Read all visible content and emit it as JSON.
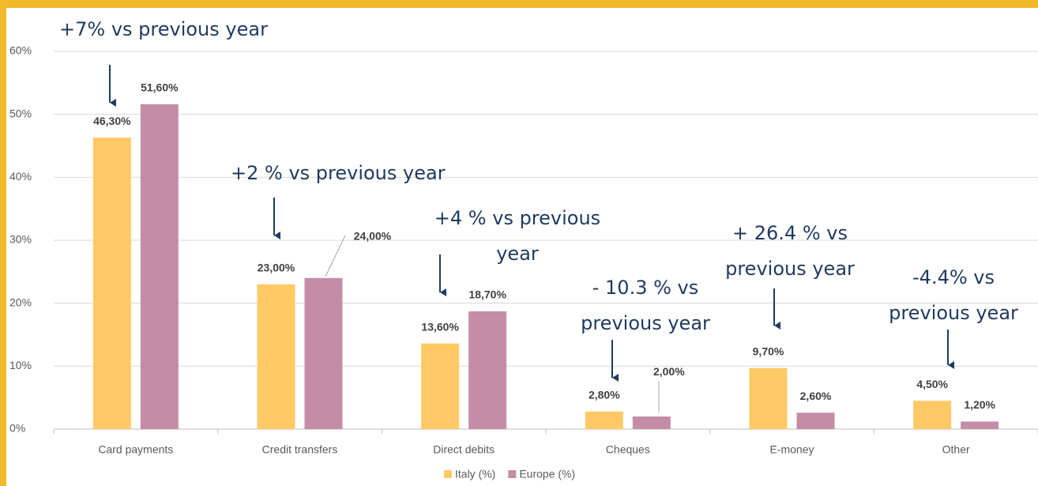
{
  "chart_data": {
    "type": "bar",
    "categories": [
      "Card payments",
      "Credit transfers",
      "Direct debits",
      "Cheques",
      "E-money",
      "Other"
    ],
    "series": [
      {
        "name": "Italy (%)",
        "color": "#ffc966",
        "values": [
          46.3,
          23.0,
          13.6,
          2.8,
          9.7,
          4.5
        ],
        "value_labels": [
          "46,30%",
          "23,00%",
          "13,60%",
          "2,80%",
          "9,70%",
          "4,50%"
        ]
      },
      {
        "name": "Europe (%)",
        "color": "#c48ca7",
        "values": [
          51.6,
          24.0,
          18.7,
          2.0,
          2.6,
          1.2
        ],
        "value_labels": [
          "51,60%",
          "24,00%",
          "18,70%",
          "2,00%",
          "2,60%",
          "1,20%"
        ]
      }
    ],
    "ylim": [
      0,
      60
    ],
    "yticks": [
      {
        "value": 0,
        "label": "0%"
      },
      {
        "value": 10,
        "label": "10%"
      },
      {
        "value": 20,
        "label": "20%"
      },
      {
        "value": 30,
        "label": "30%"
      },
      {
        "value": 40,
        "label": "40%"
      },
      {
        "value": 50,
        "label": "50%"
      },
      {
        "value": 60,
        "label": "60%"
      }
    ],
    "grid": true,
    "legend": "bottom",
    "annotations": [
      {
        "lines": [
          "+7% vs previous year"
        ]
      },
      {
        "lines": [
          "+2 % vs previous year"
        ]
      },
      {
        "lines": [
          "+4 % vs previous",
          "year"
        ]
      },
      {
        "lines": [
          "- 10.3 % vs",
          "previous year"
        ]
      },
      {
        "lines": [
          "+ 26.4 % vs",
          "previous year"
        ]
      },
      {
        "lines": [
          "-4.4% vs",
          "previous year"
        ]
      }
    ]
  }
}
